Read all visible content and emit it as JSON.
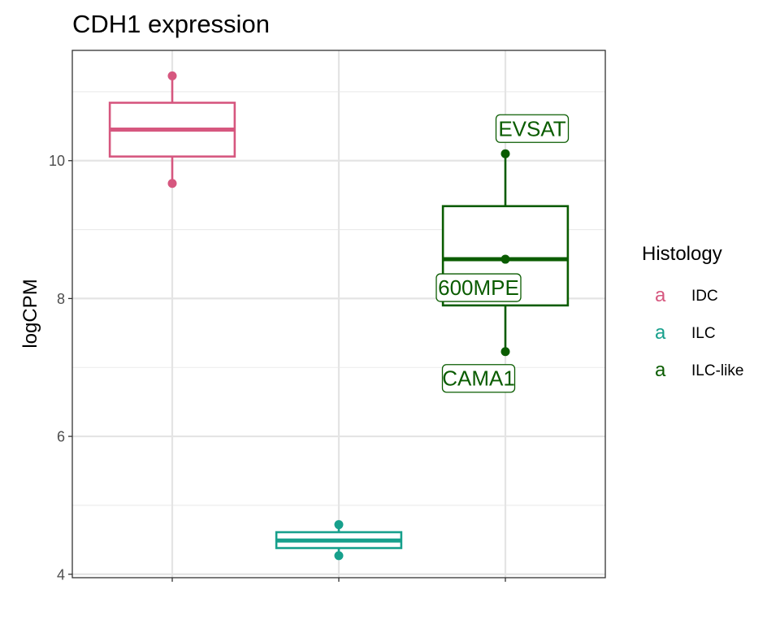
{
  "chart_data": {
    "type": "box",
    "title": "CDH1 expression",
    "xlabel": "",
    "ylabel": "logCPM",
    "ylim": [
      3.95,
      11.6
    ],
    "yticks": [
      4,
      6,
      8,
      10
    ],
    "grid": true,
    "legend": {
      "title": "Histology",
      "placement": "right",
      "key_glyph": "a",
      "entries": [
        {
          "name": "IDC",
          "color": "#D6577F"
        },
        {
          "name": "ILC",
          "color": "#17A08C"
        },
        {
          "name": "ILC-like",
          "color": "#0A5C00"
        }
      ]
    },
    "series": [
      {
        "name": "IDC",
        "color": "#D6577F",
        "box": {
          "whisker_low": 9.67,
          "q1": 10.06,
          "median": 10.45,
          "q3": 10.84,
          "whisker_high": 11.23
        },
        "points": [
          {
            "y": 11.23
          },
          {
            "y": 9.67
          }
        ]
      },
      {
        "name": "ILC",
        "color": "#17A08C",
        "box": {
          "whisker_low": 4.27,
          "q1": 4.38,
          "median": 4.49,
          "q3": 4.61,
          "whisker_high": 4.72
        },
        "points": [
          {
            "y": 4.72
          },
          {
            "y": 4.27
          }
        ]
      },
      {
        "name": "ILC-like",
        "color": "#0A5C00",
        "box": {
          "whisker_low": 7.23,
          "q1": 7.9,
          "median": 8.57,
          "q3": 9.34,
          "whisker_high": 10.1
        },
        "points": [
          {
            "y": 10.1,
            "label": "EVSAT"
          },
          {
            "y": 8.57,
            "label": "600MPE"
          },
          {
            "y": 7.23,
            "label": "CAMA1"
          }
        ]
      }
    ]
  }
}
